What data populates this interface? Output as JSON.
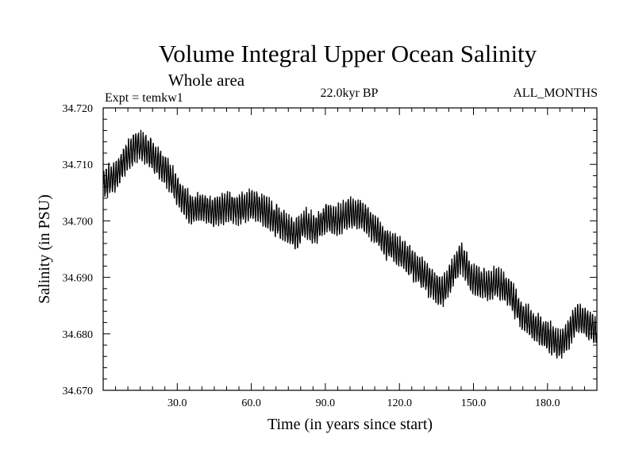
{
  "chart_data": {
    "type": "line",
    "title": "Volume Integral Upper Ocean Salinity",
    "subtitle": "Whole area",
    "annotations": {
      "left": "Expt = temkw1",
      "center": "22.0kyr BP",
      "right": "ALL_MONTHS"
    },
    "xlabel": "Time (in years since start)",
    "ylabel": "Salinity (in PSU)",
    "xlim": [
      0,
      200
    ],
    "ylim": [
      34.67,
      34.72
    ],
    "x_ticks": [
      30,
      60,
      90,
      120,
      150,
      180
    ],
    "x_tick_labels": [
      "30.0",
      "60.0",
      "90.0",
      "120.0",
      "150.0",
      "180.0"
    ],
    "y_ticks": [
      34.67,
      34.68,
      34.69,
      34.7,
      34.71,
      34.72
    ],
    "y_tick_labels": [
      "34.670",
      "34.680",
      "34.690",
      "34.700",
      "34.710",
      "34.720"
    ],
    "series": [
      {
        "name": "salinity",
        "color": "#000000",
        "trend_x": [
          0,
          5,
          10,
          14,
          18,
          22,
          26,
          30,
          35,
          40,
          45,
          50,
          55,
          60,
          65,
          70,
          75,
          78,
          82,
          86,
          90,
          95,
          100,
          105,
          110,
          115,
          120,
          125,
          130,
          135,
          138,
          141,
          145,
          150,
          155,
          160,
          165,
          170,
          175,
          180,
          185,
          188,
          192,
          195,
          200
        ],
        "trend_y": [
          34.7065,
          34.708,
          34.7115,
          34.7135,
          34.7125,
          34.7105,
          34.7085,
          34.7055,
          34.702,
          34.7025,
          34.7015,
          34.7025,
          34.702,
          34.703,
          34.702,
          34.7,
          34.6985,
          34.6975,
          34.6995,
          34.6985,
          34.7005,
          34.7,
          34.7015,
          34.701,
          34.6985,
          34.696,
          34.6945,
          34.6925,
          34.6905,
          34.688,
          34.6875,
          34.6905,
          34.6935,
          34.6895,
          34.6885,
          34.689,
          34.687,
          34.683,
          34.681,
          34.6795,
          34.678,
          34.6795,
          34.683,
          34.682,
          34.6805
        ],
        "oscillation_amplitude": 0.0025,
        "samples_per_year": 12
      }
    ]
  }
}
